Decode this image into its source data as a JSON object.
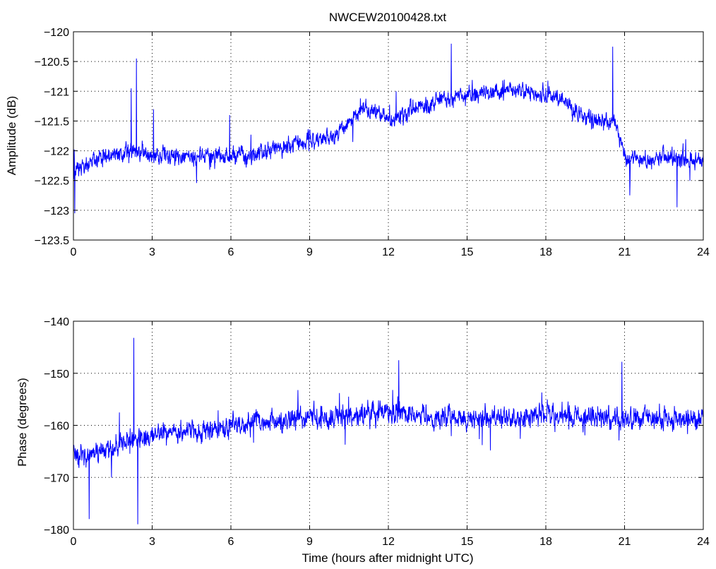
{
  "figure_title": "NWCEW20100428.txt",
  "chart_data": [
    {
      "type": "line",
      "title": "NWCEW20100428.txt",
      "xlabel": "",
      "ylabel": "Amplitude (dB)",
      "xlim": [
        0,
        24
      ],
      "ylim": [
        -123.5,
        -120
      ],
      "x_ticks": [
        0,
        3,
        6,
        9,
        12,
        15,
        18,
        21,
        24
      ],
      "y_ticks": [
        -123.5,
        -123,
        -122.5,
        -122,
        -121.5,
        -121,
        -120.5,
        -120
      ],
      "x_tick_labels": [
        "0",
        "3",
        "6",
        "9",
        "12",
        "15",
        "18",
        "21",
        "24"
      ],
      "y_tick_labels": [
        "−123.5",
        "−123",
        "−122.5",
        "−122",
        "−121.5",
        "−121",
        "−120.5",
        "−120"
      ],
      "grid": true,
      "line_color": "#0000ff",
      "trend": {
        "x": [
          0,
          0.5,
          1,
          2,
          3,
          4,
          5,
          6,
          7,
          8,
          9,
          9.8,
          10.3,
          11,
          11.5,
          12,
          12.5,
          13,
          14,
          15,
          16,
          17,
          18,
          18.6,
          19,
          20,
          20.6,
          21,
          22,
          23,
          24
        ],
        "y": [
          -122.35,
          -122.2,
          -122.1,
          -122.0,
          -122.05,
          -122.1,
          -122.1,
          -122.1,
          -122.05,
          -121.95,
          -121.85,
          -121.8,
          -121.6,
          -121.3,
          -121.35,
          -121.45,
          -121.4,
          -121.3,
          -121.15,
          -121.05,
          -121.0,
          -121.0,
          -121.05,
          -121.1,
          -121.35,
          -121.5,
          -121.5,
          -122.1,
          -122.15,
          -122.15,
          -122.15
        ]
      },
      "spikes": [
        {
          "x": 0.05,
          "y": -123.05
        },
        {
          "x": 2.2,
          "y": -120.95
        },
        {
          "x": 2.4,
          "y": -120.45
        },
        {
          "x": 3.05,
          "y": -121.3
        },
        {
          "x": 5.95,
          "y": -121.4
        },
        {
          "x": 12.3,
          "y": -121.0
        },
        {
          "x": 14.4,
          "y": -120.2
        },
        {
          "x": 20.55,
          "y": -120.25
        },
        {
          "x": 21.2,
          "y": -122.75
        },
        {
          "x": 23.0,
          "y": -122.95
        }
      ],
      "noise_amplitude": 0.22
    },
    {
      "type": "line",
      "title": "",
      "xlabel": "Time (hours after midnight UTC)",
      "ylabel": "Phase (degrees)",
      "xlim": [
        0,
        24
      ],
      "ylim": [
        -180,
        -140
      ],
      "x_ticks": [
        0,
        3,
        6,
        9,
        12,
        15,
        18,
        21,
        24
      ],
      "y_ticks": [
        -180,
        -170,
        -160,
        -150,
        -140
      ],
      "x_tick_labels": [
        "0",
        "3",
        "6",
        "9",
        "12",
        "15",
        "18",
        "21",
        "24"
      ],
      "y_tick_labels": [
        "−180",
        "−170",
        "−160",
        "−150",
        "−140"
      ],
      "grid": true,
      "line_color": "#0000ff",
      "trend": {
        "x": [
          0,
          0.5,
          1,
          1.5,
          2,
          2.5,
          3,
          4,
          5,
          6,
          7,
          8,
          9,
          10,
          11,
          12,
          13,
          14,
          15,
          16,
          17,
          18,
          19,
          20,
          21,
          22,
          23,
          24
        ],
        "y": [
          -165,
          -166,
          -165,
          -164,
          -163,
          -162.5,
          -162,
          -161.5,
          -161,
          -160,
          -159.5,
          -159,
          -158.5,
          -158.5,
          -158,
          -157.5,
          -158,
          -158.5,
          -158.5,
          -158.5,
          -158.5,
          -158,
          -158,
          -158.5,
          -158.5,
          -158.5,
          -158.5,
          -158.5
        ]
      },
      "spikes": [
        {
          "x": 0.6,
          "y": -178
        },
        {
          "x": 2.3,
          "y": -143.2
        },
        {
          "x": 2.45,
          "y": -179
        },
        {
          "x": 12.4,
          "y": -147.5
        },
        {
          "x": 20.9,
          "y": -147.8
        }
      ],
      "noise_amplitude": 3.2
    }
  ]
}
